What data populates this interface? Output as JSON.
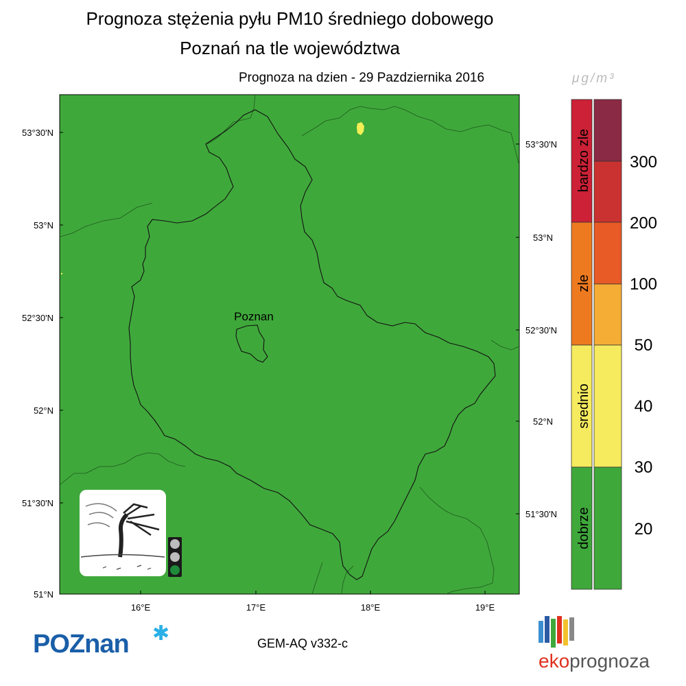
{
  "title_line1": "Prognoza stężenia pyłu PM10 średniego dobowego",
  "title_line2": "Poznań na tle województwa",
  "forecast_date": "Prognoza na dzien -  29 Pazdziernika 2016",
  "unit": "μg/m³",
  "city_label": "Poznan",
  "map": {
    "background_color": "#3fa83b",
    "hotspot_color": "#f4ef55",
    "left_lat_labels": [
      "53°30'N",
      "53°N",
      "52°30'N",
      "52°N",
      "51°30'N",
      "51°N"
    ],
    "right_lat_labels": [
      "53°30'N",
      "53°N",
      "52°30'N",
      "52°N",
      "51°30'N"
    ],
    "lon_labels": [
      "16°E",
      "17°E",
      "18°E",
      "19°E"
    ]
  },
  "legend": {
    "categories": [
      {
        "label": "bardzo zle",
        "color": "#cc2136"
      },
      {
        "label": "zle",
        "color": "#ee7a20"
      },
      {
        "label": "srednio",
        "color": "#f6eb5f"
      },
      {
        "label": "dobrze",
        "color": "#3fa83b"
      }
    ],
    "scale_colors": [
      "#8b2a45",
      "#c93230",
      "#e85a26",
      "#f5ad35",
      "#f6eb5f",
      "#f6eb5f",
      "#3fa83b",
      "#3fa83b"
    ],
    "levels": [
      "300",
      "200",
      "100",
      "50",
      "40",
      "30",
      "20"
    ]
  },
  "traffic_light": {
    "active": "green"
  },
  "model_label": "GEM-AQ v332-c",
  "logo_left": "POZnan",
  "logo_right_eko": "eko",
  "logo_right_prog": "prognoza"
}
